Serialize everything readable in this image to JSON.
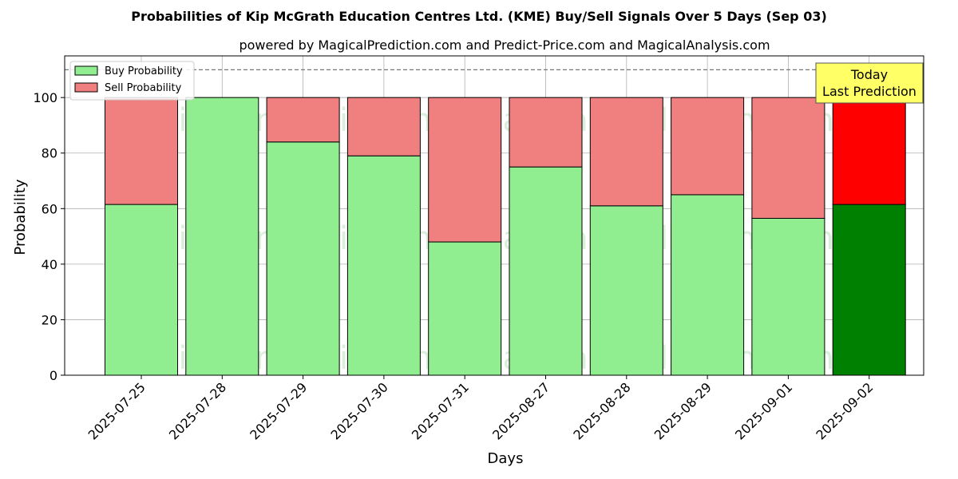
{
  "chart_data": {
    "type": "bar",
    "stacked": true,
    "title": "Probabilities of Kip McGrath Education Centres Ltd. (KME) Buy/Sell Signals Over 5 Days (Sep 03)",
    "subtitle": "powered by MagicalPrediction.com and Predict-Price.com and MagicalAnalysis.com",
    "xlabel": "Days",
    "ylabel": "Probability",
    "ylim": [
      0,
      115
    ],
    "yticks": [
      0,
      20,
      40,
      60,
      80,
      100
    ],
    "grid": true,
    "legend_position": "top-left",
    "categories": [
      "2025-07-25",
      "2025-07-28",
      "2025-07-29",
      "2025-07-30",
      "2025-07-31",
      "2025-08-27",
      "2025-08-28",
      "2025-08-29",
      "2025-09-01",
      "2025-09-02"
    ],
    "series": [
      {
        "name": "Buy Probability",
        "color": "#90ee90",
        "values": [
          61.5,
          100,
          84,
          79,
          48,
          75,
          61,
          65,
          56.5,
          61.5
        ]
      },
      {
        "name": "Sell Probability",
        "color": "#f08080",
        "values": [
          38.5,
          0,
          16,
          21,
          52,
          25,
          39,
          35,
          43.5,
          38.5
        ]
      }
    ],
    "highlight": {
      "index": 9,
      "buy_color": "#008000",
      "sell_color": "#ff0000",
      "label_lines": [
        "Today",
        "Last Prediction"
      ],
      "box_color": "#ffff66"
    },
    "reference_line": {
      "y": 110,
      "style": "dashed"
    },
    "watermarks": [
      "MagicalAnalysis.com",
      "MagicalPrediction.com"
    ]
  }
}
